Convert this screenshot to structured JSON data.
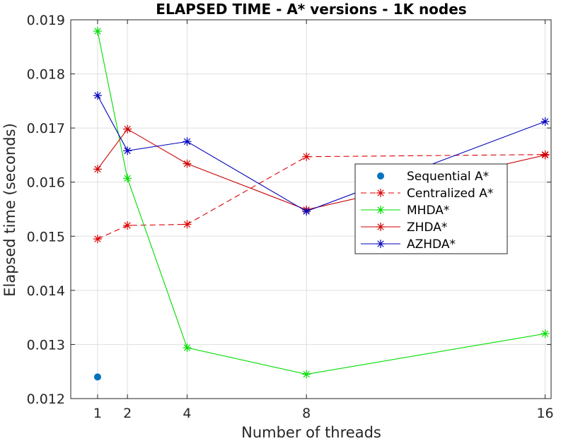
{
  "chart_data": {
    "type": "line",
    "title": "ELAPSED TIME - A* versions - 1K nodes",
    "xlabel": "Number of threads",
    "ylabel": "Elapsed time (seconds)",
    "xlim": [
      0.1,
      16.2
    ],
    "ylim": [
      0.012,
      0.019
    ],
    "xticks": [
      1,
      2,
      4,
      8,
      16
    ],
    "xtick_labels": [
      "1",
      "2",
      "4",
      "8",
      "16"
    ],
    "yticks": [
      0.012,
      0.013,
      0.014,
      0.015,
      0.016,
      0.017,
      0.018,
      0.019
    ],
    "ytick_labels": [
      "0.012",
      "0.013",
      "0.014",
      "0.015",
      "0.016",
      "0.017",
      "0.018",
      "0.019"
    ],
    "grid": true,
    "legend_position": "center-right",
    "series": [
      {
        "name": "Sequential A*",
        "color": "#0072BD",
        "style": "marker-only",
        "marker": "dot",
        "x": [
          1
        ],
        "y": [
          0.0124
        ]
      },
      {
        "name": "Centralized A*",
        "color": "#DD0000",
        "style": "dashed",
        "marker": "asterisk",
        "x": [
          1,
          2,
          4,
          8,
          16
        ],
        "y": [
          0.01495,
          0.0152,
          0.01522,
          0.01647,
          0.01651
        ]
      },
      {
        "name": "MHDA*",
        "color": "#00DD00",
        "style": "solid",
        "marker": "asterisk",
        "x": [
          1,
          2,
          4,
          8,
          16
        ],
        "y": [
          0.01879,
          0.01607,
          0.01294,
          0.01245,
          0.0132
        ]
      },
      {
        "name": "ZHDA*",
        "color": "#CC0000",
        "style": "solid",
        "marker": "asterisk",
        "x": [
          1,
          2,
          4,
          8,
          16
        ],
        "y": [
          0.01624,
          0.01698,
          0.01634,
          0.01549,
          0.0165
        ]
      },
      {
        "name": "AZHDA*",
        "color": "#0000BB",
        "style": "solid",
        "marker": "asterisk",
        "x": [
          1,
          2,
          4,
          8,
          16
        ],
        "y": [
          0.0176,
          0.01658,
          0.01675,
          0.01546,
          0.01712
        ]
      }
    ]
  }
}
